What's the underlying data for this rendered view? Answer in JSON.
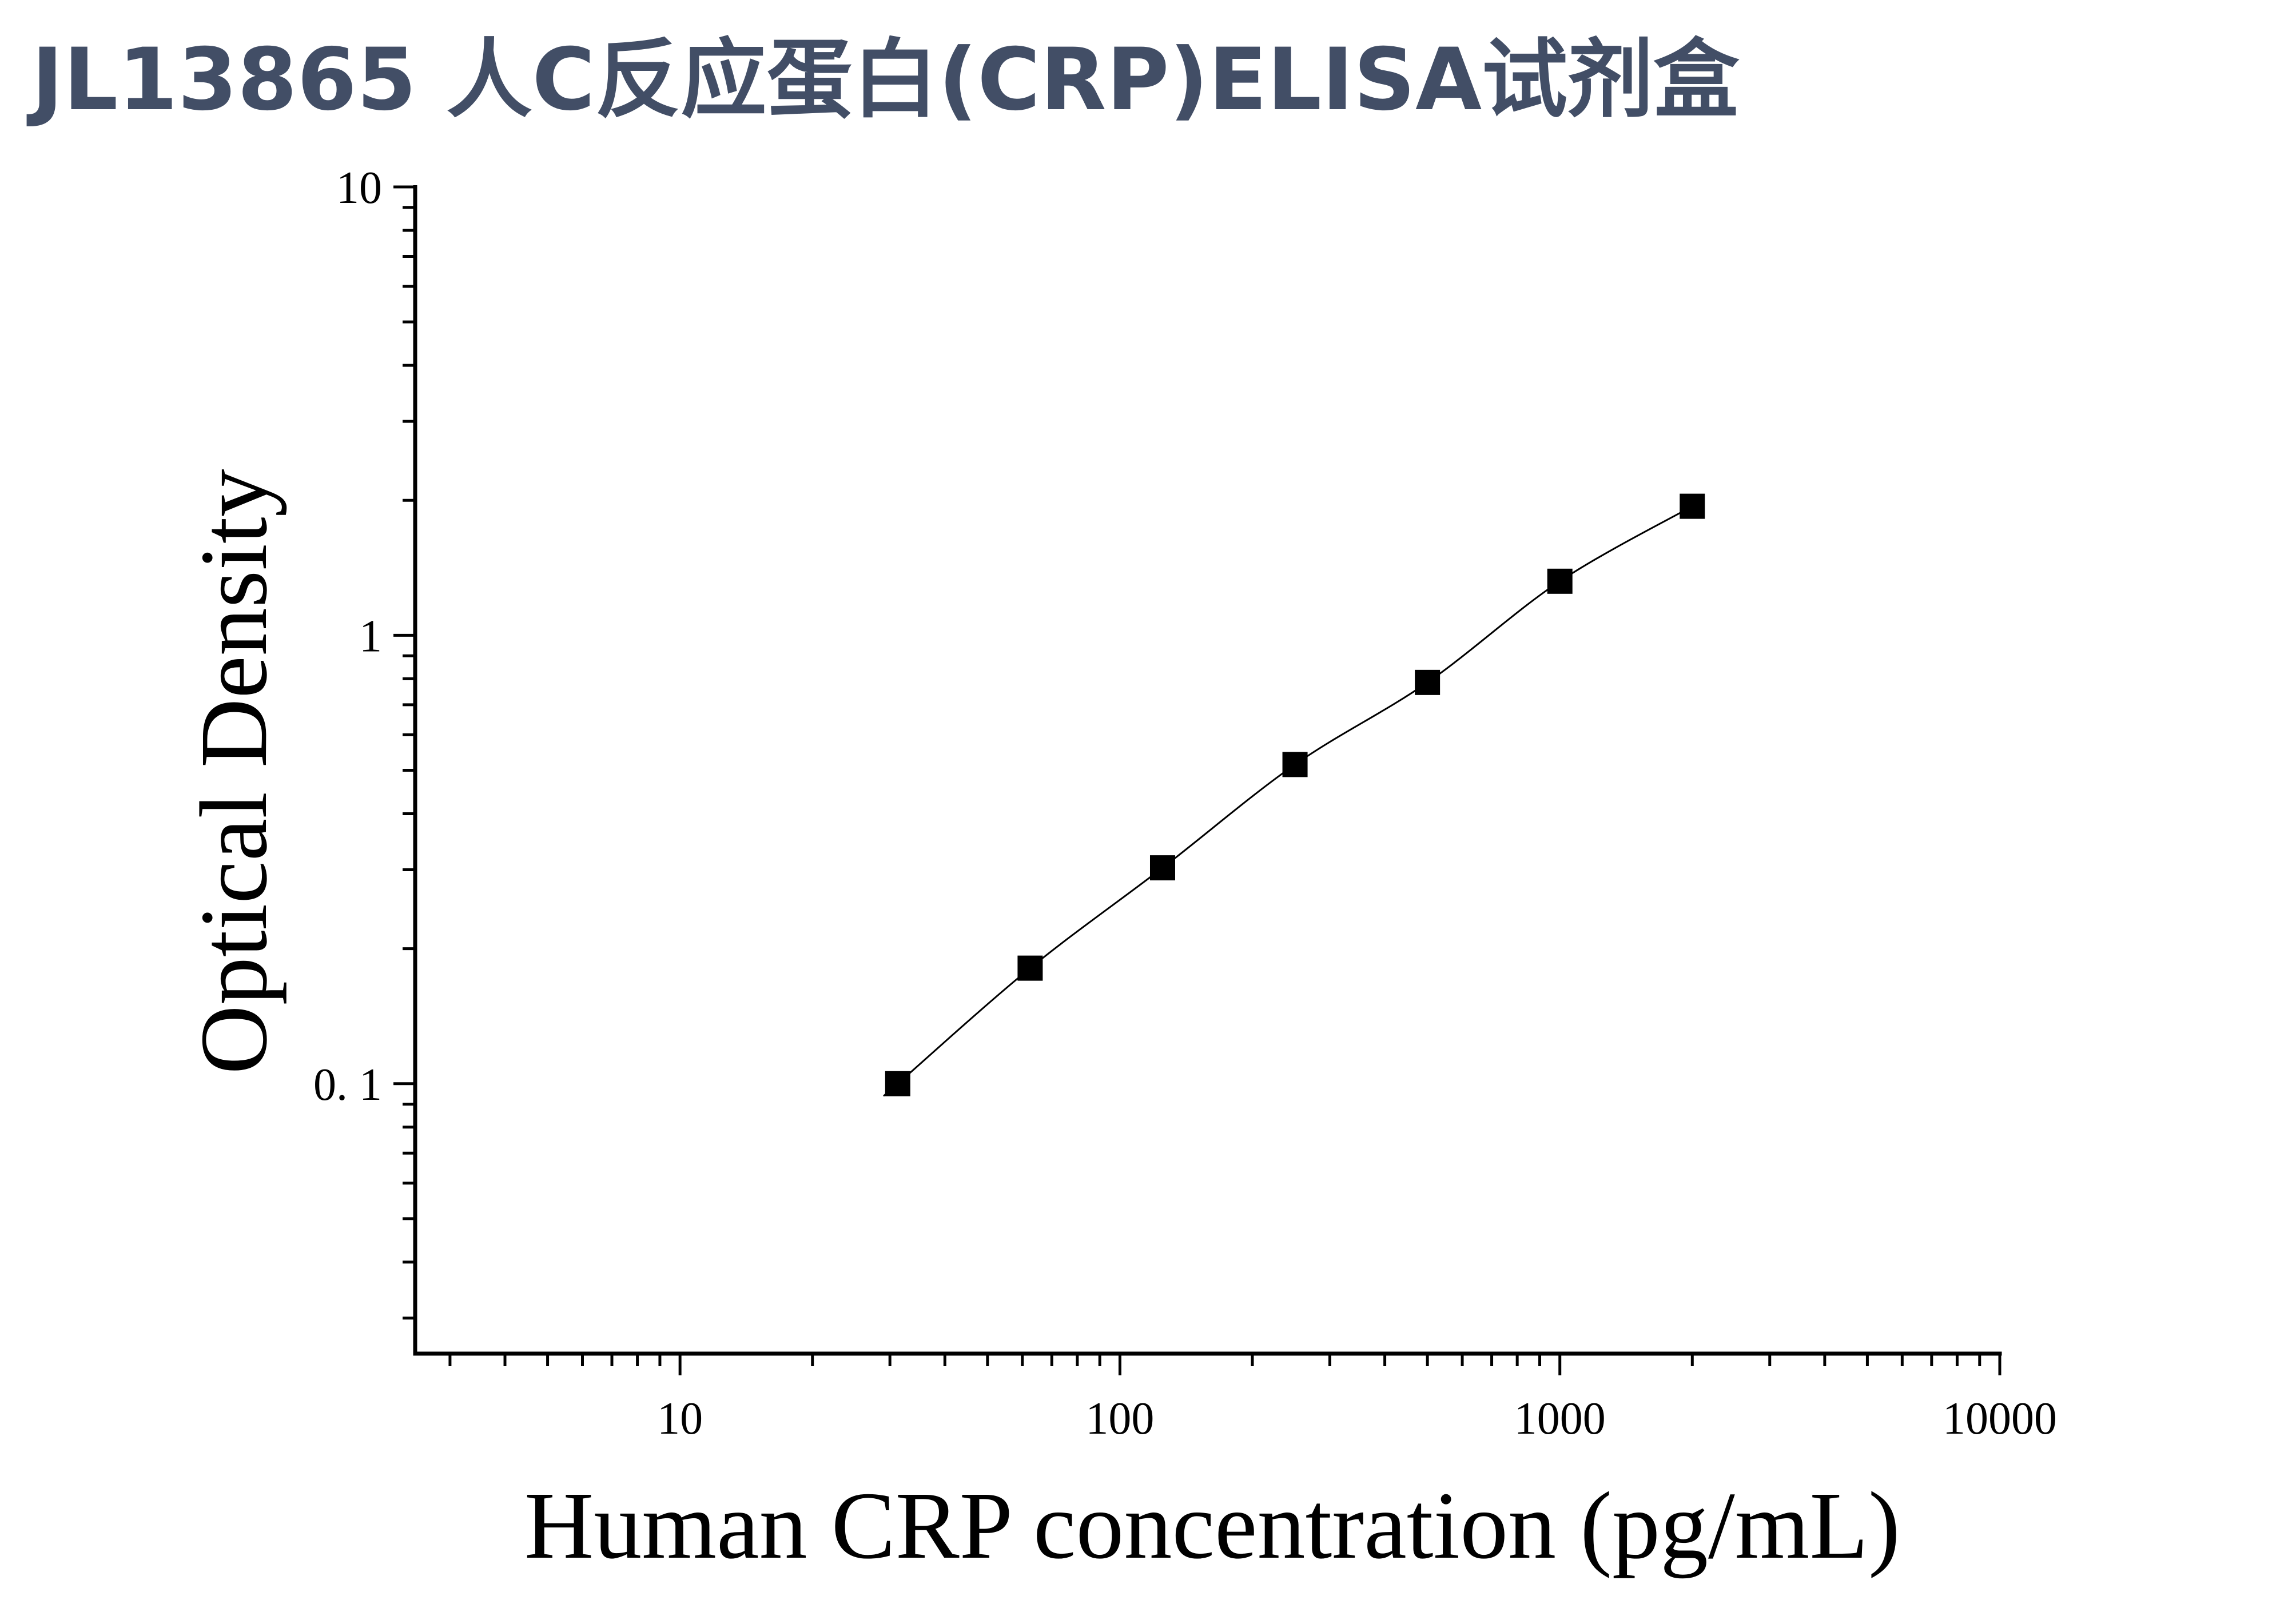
{
  "page": {
    "title": "JL13865 人C反应蛋白(CRP)ELISA试剂盒"
  },
  "colors": {
    "title": "#424e66",
    "axis": "#000000",
    "marker": "#000000",
    "curve": "#000000"
  },
  "chart_data": {
    "type": "scatter",
    "title": "",
    "xlabel": "Human CRP concentration (pg/mL)",
    "ylabel": "Optical Density",
    "x_scale": "log",
    "y_scale": "log",
    "xlim": [
      2.5,
      10000
    ],
    "ylim": [
      0.025,
      10
    ],
    "x_ticks": [
      10,
      100,
      1000,
      10000
    ],
    "x_tick_labels": [
      "10",
      "100",
      "1000",
      "10000"
    ],
    "y_ticks": [
      0.1,
      1,
      10
    ],
    "y_tick_labels": [
      "0. 1",
      "1",
      "10"
    ],
    "grid": false,
    "legend": "none",
    "marker": "filled-square",
    "fit_curve": true,
    "series": [
      {
        "x": [
          31.25,
          62.5,
          125,
          250,
          500,
          1000,
          2000
        ],
        "y": [
          0.1,
          0.181,
          0.303,
          0.515,
          0.785,
          1.32,
          1.94
        ]
      }
    ]
  }
}
